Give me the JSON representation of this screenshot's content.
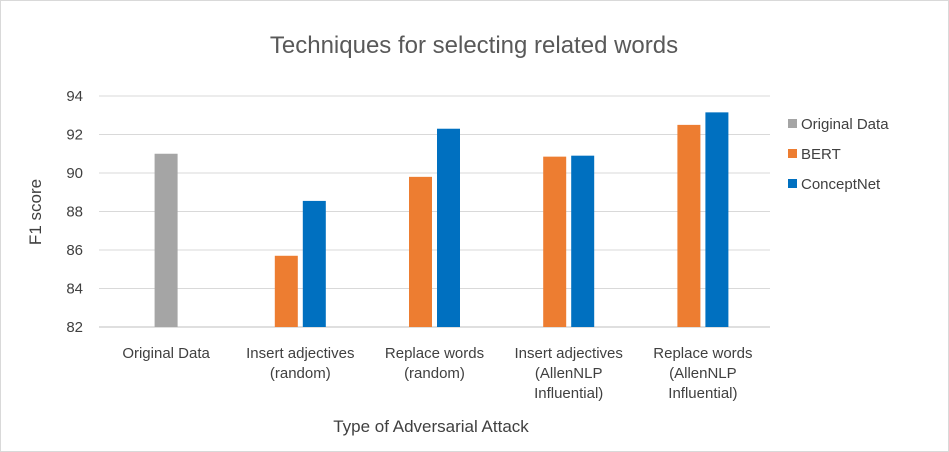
{
  "chart_data": {
    "type": "bar",
    "title": "Techniques  for  selecting  related  words",
    "xlabel": "Type of Adversarial Attack",
    "ylabel": "F1 score",
    "ylim": [
      82,
      94
    ],
    "yticks": [
      "82",
      "84",
      "86",
      "88",
      "90",
      "92",
      "94"
    ],
    "grid": true,
    "legend_position": "right",
    "categories": [
      [
        "Original Data"
      ],
      [
        "Insert adjectives",
        "(random)"
      ],
      [
        "Replace words",
        "(random)"
      ],
      [
        "Insert adjectives",
        "(AllenNLP",
        "Influential)"
      ],
      [
        "Replace words",
        "(AllenNLP",
        "Influential)"
      ]
    ],
    "series": [
      {
        "name": "Original Data",
        "color": "#a5a5a5",
        "values": [
          91.0,
          null,
          null,
          null,
          null
        ]
      },
      {
        "name": "BERT",
        "color": "#ed7d31",
        "values": [
          null,
          85.7,
          89.8,
          90.85,
          92.5
        ]
      },
      {
        "name": "ConceptNet",
        "color": "#0070c0",
        "values": [
          null,
          88.55,
          92.3,
          90.9,
          93.15
        ]
      }
    ]
  }
}
